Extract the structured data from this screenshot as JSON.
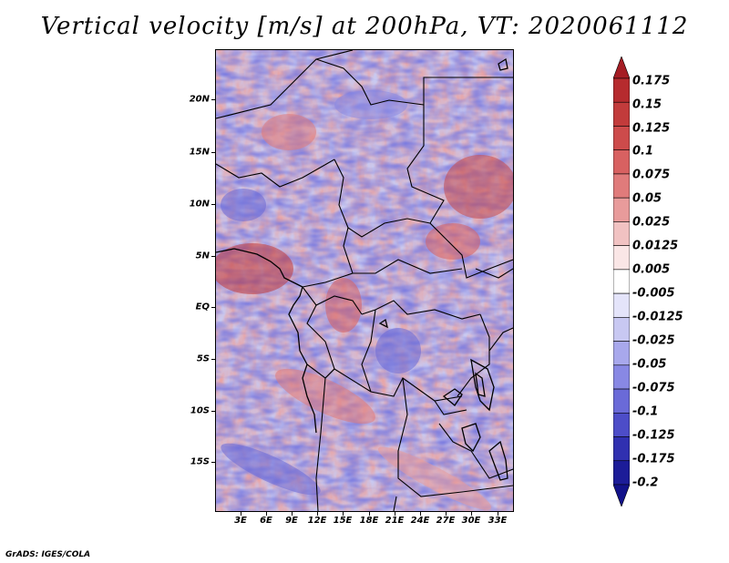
{
  "title": "Vertical velocity [m/s] at 200hPa, VT: 2020061112",
  "credit": "GrADS: IGES/COLA",
  "map": {
    "region": "Central Africa",
    "lat_range": [
      -20,
      25
    ],
    "lon_range": [
      0,
      35
    ],
    "y_axis_labels": [
      "20N",
      "15N",
      "10N",
      "5N",
      "EQ",
      "5S",
      "10S",
      "15S"
    ],
    "x_axis_labels": [
      "3E",
      "6E",
      "9E",
      "12E",
      "15E",
      "18E",
      "21E",
      "24E",
      "27E",
      "30E",
      "33E"
    ]
  },
  "colorbar": {
    "labels": [
      "0.175",
      "0.15",
      "0.125",
      "0.1",
      "0.075",
      "0.05",
      "0.025",
      "0.0125",
      "0.005",
      "-0.005",
      "-0.0125",
      "-0.025",
      "-0.05",
      "-0.075",
      "-0.1",
      "-0.125",
      "-0.175",
      "-0.2"
    ],
    "colors": [
      "#a51d24",
      "#b62b2e",
      "#c23b3b",
      "#cd4b4b",
      "#d86161",
      "#e07b7b",
      "#e89b9b",
      "#f1c2c2",
      "#fae6e6",
      "#ffffff",
      "#e4e4fa",
      "#c8c8f2",
      "#a8a8ec",
      "#8888e4",
      "#6a6ad8",
      "#4d4dc8",
      "#3030b0",
      "#1c1c98",
      "#12128a"
    ]
  }
}
